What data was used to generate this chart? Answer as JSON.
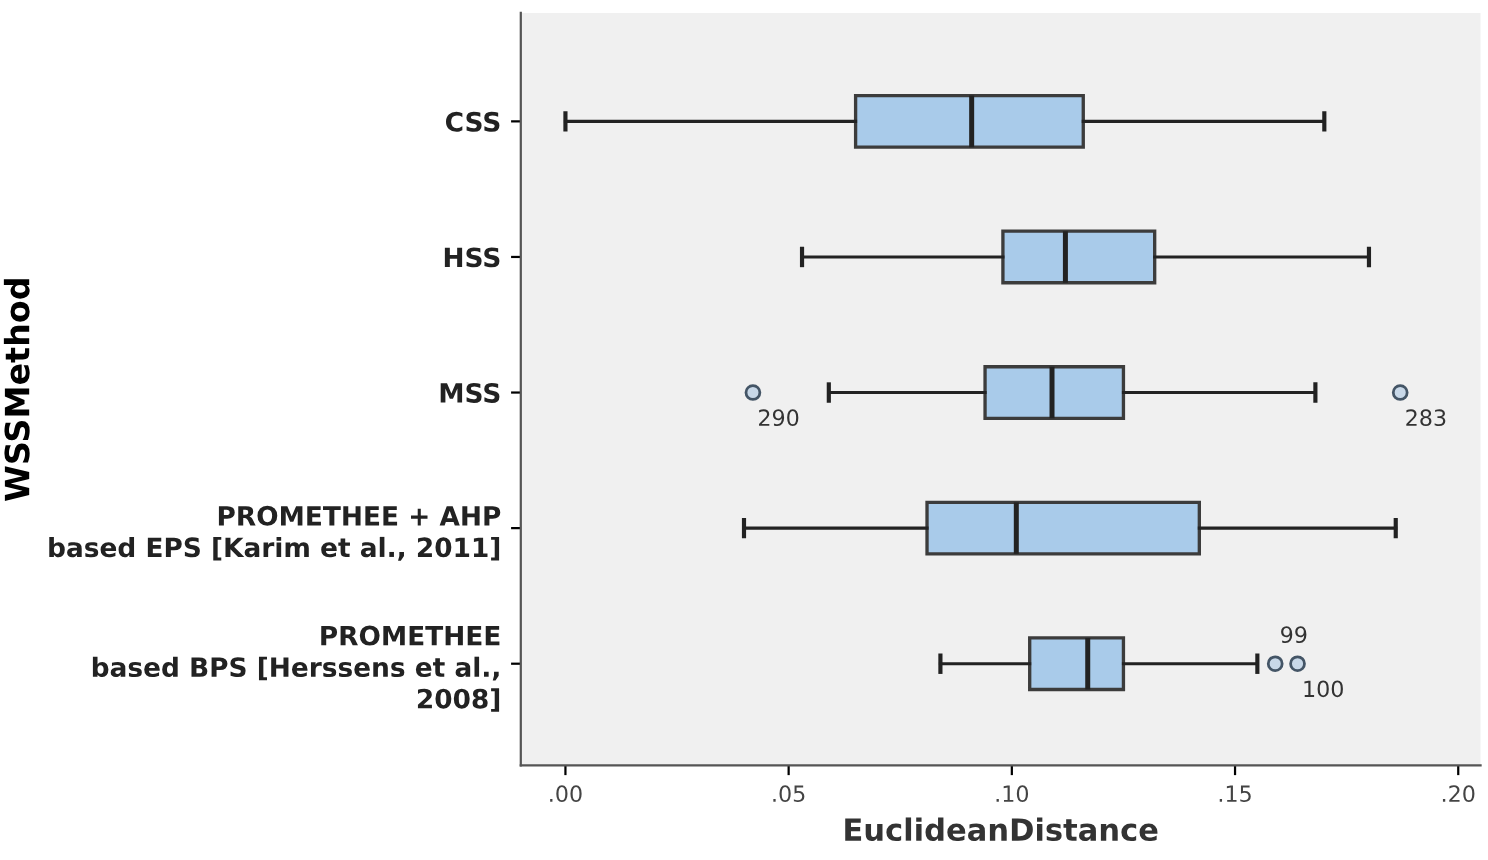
{
  "chart_data": {
    "type": "box",
    "orientation": "horizontal",
    "xlabel": "EuclideanDistance",
    "ylabel": "WSSMethod",
    "categories": [
      "CSS",
      "HSS",
      "MSS",
      "PROMETHEE + AHP\nbased EPS [Karim et al., 2011]",
      "PROMETHEE\nbased BPS [Herssens et al.,\n2008]"
    ],
    "boxes": [
      {
        "low": 0.0,
        "q1": 0.065,
        "median": 0.091,
        "q3": 0.116,
        "high": 0.17
      },
      {
        "low": 0.053,
        "q1": 0.098,
        "median": 0.112,
        "q3": 0.132,
        "high": 0.18
      },
      {
        "low": 0.059,
        "q1": 0.094,
        "median": 0.109,
        "q3": 0.125,
        "high": 0.168,
        "outliers": [
          0.042,
          0.187
        ]
      },
      {
        "low": 0.04,
        "q1": 0.081,
        "median": 0.101,
        "q3": 0.142,
        "high": 0.186
      },
      {
        "low": 0.084,
        "q1": 0.104,
        "median": 0.117,
        "q3": 0.125,
        "high": 0.155,
        "outliers": [
          0.159,
          0.164
        ]
      }
    ],
    "color": "#a9cbea",
    "xlim": [
      -0.01,
      0.205
    ],
    "xticks": [
      {
        "value": 0,
        "label": ".00"
      },
      {
        "value": 0.05,
        "label": ".05"
      },
      {
        "value": 0.1,
        "label": ".10"
      },
      {
        "value": 0.15,
        "label": ".15"
      },
      {
        "value": 0.2,
        "label": ".20"
      }
    ],
    "annotations": [
      "290",
      "283",
      "99",
      "100"
    ],
    "grid": false,
    "legend": false
  }
}
